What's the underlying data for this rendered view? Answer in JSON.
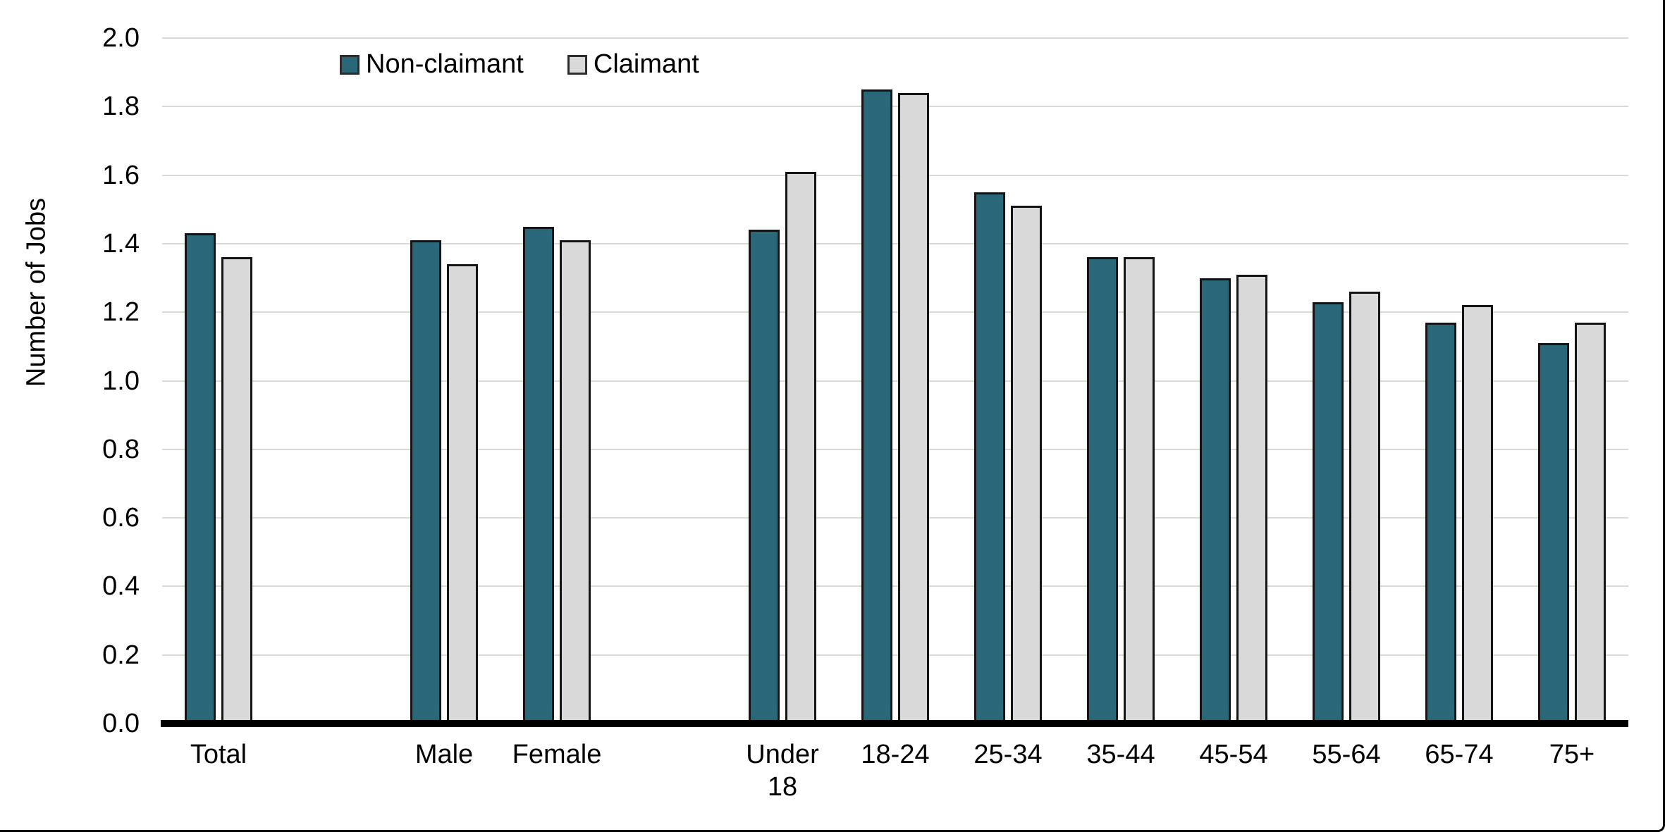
{
  "chart_data": {
    "type": "bar",
    "title": "",
    "xlabel": "",
    "ylabel": "Number of Jobs",
    "ylim": [
      0.0,
      2.0
    ],
    "ytick_step": 0.2,
    "ytick_labels": [
      "0.0",
      "0.2",
      "0.4",
      "0.6",
      "0.8",
      "1.0",
      "1.2",
      "1.4",
      "1.6",
      "1.8",
      "2.0"
    ],
    "grid": true,
    "legend_position": "top-inside-left",
    "categories": [
      "Total",
      "Male",
      "Female",
      "Under 18",
      "18-24",
      "25-34",
      "35-44",
      "45-54",
      "55-64",
      "65-74",
      "75+"
    ],
    "category_gaps_after": [
      "Total",
      "Female"
    ],
    "series": [
      {
        "name": "Non-claimant",
        "color": "#2a6879",
        "values": [
          1.43,
          1.41,
          1.45,
          1.44,
          1.85,
          1.55,
          1.36,
          1.3,
          1.23,
          1.17,
          1.11
        ]
      },
      {
        "name": "Claimant",
        "color": "#d9d9d9",
        "values": [
          1.36,
          1.34,
          1.41,
          1.61,
          1.84,
          1.51,
          1.36,
          1.31,
          1.26,
          1.22,
          1.17
        ]
      }
    ],
    "colors": {
      "bar_border": "#141414",
      "gridline": "#d9d9d9",
      "axis_line": "#000000",
      "text": "#000000"
    }
  }
}
